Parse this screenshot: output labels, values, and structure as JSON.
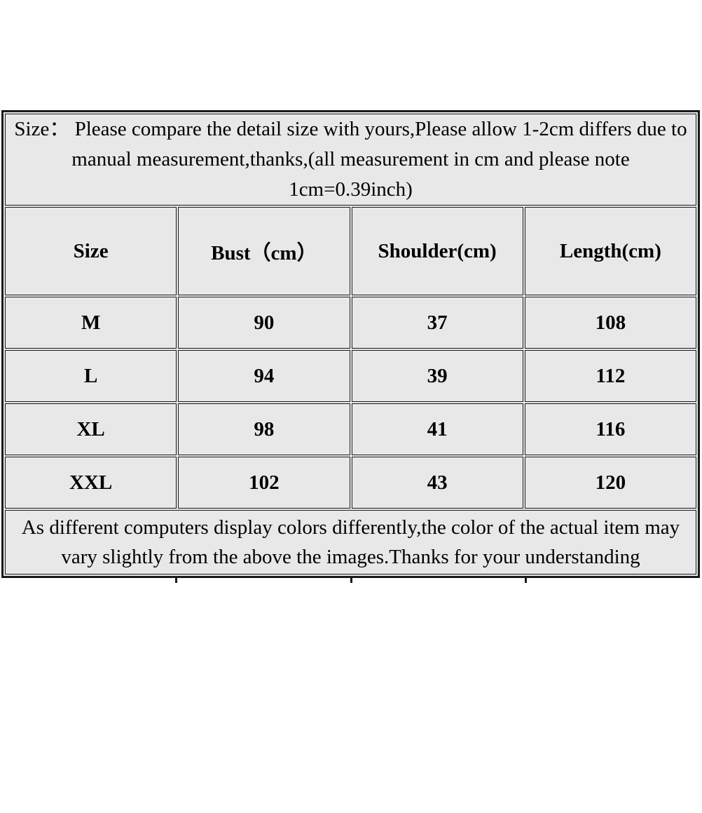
{
  "colors": {
    "page_background": "#ffffff",
    "cell_background": "#e8e8e8",
    "border": "#1a1a1a",
    "text": "#000000"
  },
  "top_note": {
    "lines": [
      "Size： Please compare the detail size with yours,Please allow 1-2cm differs due to",
      "manual measurement,thanks,(all measurement in cm and please note",
      "1cm=0.39inch)"
    ]
  },
  "table": {
    "headers": [
      "Size",
      "Bust（cm）",
      "Shoulder(cm)",
      "Length(cm)"
    ],
    "rows": [
      [
        "M",
        "90",
        "37",
        "108"
      ],
      [
        "L",
        "94",
        "39",
        "112"
      ],
      [
        "XL",
        "98",
        "41",
        "116"
      ],
      [
        "XXL",
        "102",
        "43",
        "120"
      ]
    ]
  },
  "bottom_note": {
    "lines": [
      "As different computers display colors differently,the color of the actual item may",
      "vary slightly from the above the images.Thanks for your understanding"
    ]
  }
}
